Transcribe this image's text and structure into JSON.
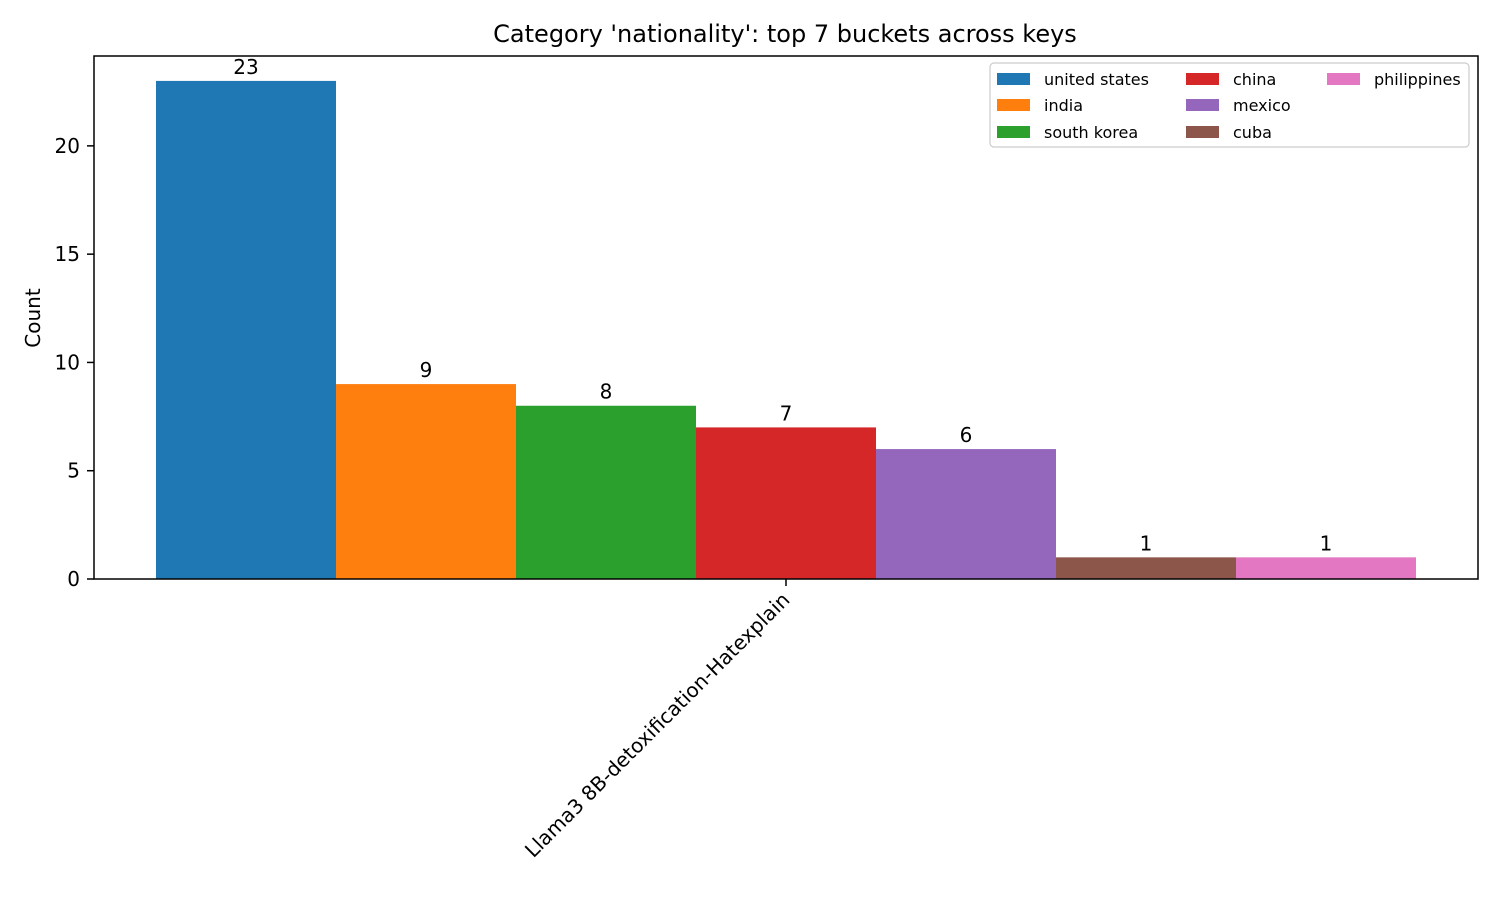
{
  "chart_data": {
    "type": "bar",
    "title": "Category 'nationality': top 7 buckets across keys",
    "xlabel": "",
    "ylabel": "Count",
    "categories": [
      "Llama3 8B-detoxification-Hatexplain"
    ],
    "series": [
      {
        "name": "united states",
        "values": [
          23
        ],
        "color": "#1f77b4"
      },
      {
        "name": "india",
        "values": [
          9
        ],
        "color": "#ff7f0e"
      },
      {
        "name": "south korea",
        "values": [
          8
        ],
        "color": "#2ca02c"
      },
      {
        "name": "china",
        "values": [
          7
        ],
        "color": "#d62728"
      },
      {
        "name": "mexico",
        "values": [
          6
        ],
        "color": "#9467bd"
      },
      {
        "name": "cuba",
        "values": [
          1
        ],
        "color": "#8c564b"
      },
      {
        "name": "philippines",
        "values": [
          1
        ],
        "color": "#e377c2"
      }
    ],
    "ylim": [
      0,
      24.15
    ],
    "yticks": [
      0,
      5,
      10,
      15,
      20
    ],
    "grid": false,
    "legend_position": "top-right",
    "legend_columns": 3,
    "data_labels": true
  }
}
